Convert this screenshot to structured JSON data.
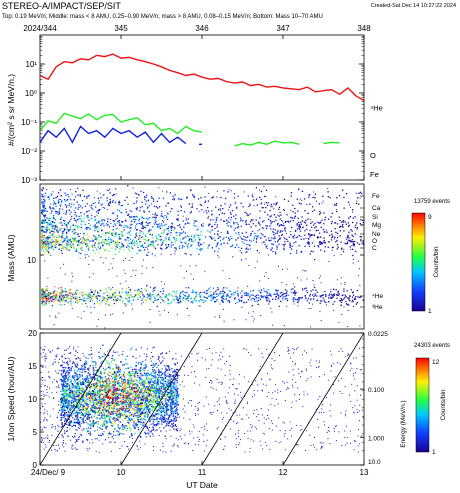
{
  "header": {
    "title": "STEREO-A/IMPACT/SEP/SIT",
    "created": "Created-Sat Dec 14 10:27:22 2024",
    "subtitle": "Top: 0.19 MeV/n; Middle: mass < 8 AMU, 0.25–0.90 MeV/n; mass > 8 AMU, 0.08–0.15 MeV/n; Bottom: Mass 10–70 AMU"
  },
  "colors": {
    "He": "#ee1111",
    "O": "#22ee22",
    "Fe": "#1122dd",
    "axis": "#000000"
  },
  "chart_data": [
    {
      "type": "line",
      "panel": "top",
      "top_axis_ticks": [
        "2024/344",
        "345",
        "346",
        "347",
        "348"
      ],
      "ylabel": "#/(cm² s sr MeV/n.)",
      "y_scale": "log",
      "ylim": [
        0.001,
        100
      ],
      "y_ticks": [
        "10⁻³",
        "10⁻²",
        "10⁻¹",
        "10⁰",
        "10¹"
      ],
      "xlim": [
        344,
        348
      ],
      "series": [
        {
          "name": "⁴He",
          "color_key": "He",
          "x": [
            344.0,
            344.1,
            344.2,
            344.3,
            344.4,
            344.5,
            344.6,
            344.7,
            344.8,
            344.9,
            345.0,
            345.1,
            345.2,
            345.3,
            345.4,
            345.5,
            345.6,
            345.7,
            345.8,
            345.9,
            346.0,
            346.1,
            346.2,
            346.3,
            346.4,
            346.5,
            346.6,
            346.7,
            346.8,
            346.9,
            347.0,
            347.1,
            347.2,
            347.3,
            347.4,
            347.5,
            347.6,
            347.7,
            347.8,
            347.9,
            348.0
          ],
          "values": [
            4,
            3,
            8,
            12,
            11,
            15,
            14,
            20,
            18,
            22,
            16,
            17,
            14,
            12,
            10,
            8,
            6,
            5,
            4,
            4.5,
            3.5,
            3,
            3.2,
            2.5,
            2.2,
            2.4,
            1.8,
            2.0,
            1.6,
            1.7,
            1.5,
            1.4,
            1.3,
            1.6,
            1.1,
            1.2,
            1.3,
            0.9,
            1.5,
            0.8,
            0.55
          ]
        },
        {
          "name": "O",
          "color_key": "O",
          "x": [
            344.0,
            344.1,
            344.2,
            344.3,
            344.4,
            344.5,
            344.6,
            344.7,
            344.8,
            344.9,
            345.0,
            345.1,
            345.2,
            345.3,
            345.4,
            345.5,
            345.6,
            345.7,
            345.8,
            345.9,
            346.0,
            346.4,
            346.5,
            346.6,
            346.7,
            346.8,
            346.9,
            347.0,
            347.1,
            347.2,
            347.5,
            347.6,
            347.7
          ],
          "values": [
            0.05,
            0.11,
            0.09,
            0.2,
            0.16,
            0.13,
            0.19,
            0.12,
            0.17,
            0.18,
            0.1,
            0.12,
            0.14,
            0.08,
            0.09,
            0.05,
            0.06,
            0.04,
            0.07,
            0.05,
            0.045,
            0.015,
            0.018,
            0.016,
            0.02,
            0.017,
            0.022,
            0.019,
            0.02,
            0.017,
            0.018,
            0.02,
            0.019
          ]
        },
        {
          "name": "Fe",
          "color_key": "Fe",
          "x": [
            344.0,
            344.1,
            344.2,
            344.3,
            344.4,
            344.5,
            344.6,
            344.7,
            344.8,
            344.9,
            345.0,
            345.1,
            345.2,
            345.3,
            345.4,
            345.5,
            345.6,
            345.7,
            345.8,
            346.0
          ],
          "values": [
            0.02,
            0.05,
            0.03,
            0.06,
            0.02,
            0.07,
            0.04,
            0.05,
            0.03,
            0.06,
            0.04,
            0.05,
            0.03,
            0.045,
            0.02,
            0.04,
            0.02,
            0.03,
            0.018,
            0.017
          ]
        }
      ]
    },
    {
      "type": "scatter",
      "panel": "middle",
      "ylabel": "Mass (AMU)",
      "y_scale": "log",
      "y_ticks": [
        "10"
      ],
      "right_labels": [
        "Fe",
        "Ca",
        "Si",
        "Mg",
        "Ne",
        "O",
        "C",
        "⁴He",
        "³He"
      ],
      "colorbar": {
        "events_label": "13759 events",
        "label": "Counts/bin",
        "min": 1,
        "max": 9,
        "tick_labels": [
          "1",
          "9"
        ]
      }
    },
    {
      "type": "scatter",
      "panel": "bottom",
      "ylabel": "1/Ion Speed (hour/AU)",
      "xlabel": "UT Date",
      "ylim": [
        0,
        20
      ],
      "y_ticks": [
        "0",
        "5",
        "10",
        "15",
        "20"
      ],
      "x_ticks": [
        "24/Dec/ 9",
        "10",
        "11",
        "12",
        "13"
      ],
      "xlim": [
        9,
        13
      ],
      "right_axis_label": "Energy (MeV/n.)",
      "right_axis_ticks": [
        "0.0225",
        "0.100",
        "1.000",
        "10.0"
      ],
      "colorbar": {
        "events_label": "24303 events",
        "label": "Counts/bin",
        "min": 1,
        "max": 12,
        "tick_labels": [
          "1",
          "12"
        ]
      }
    }
  ]
}
